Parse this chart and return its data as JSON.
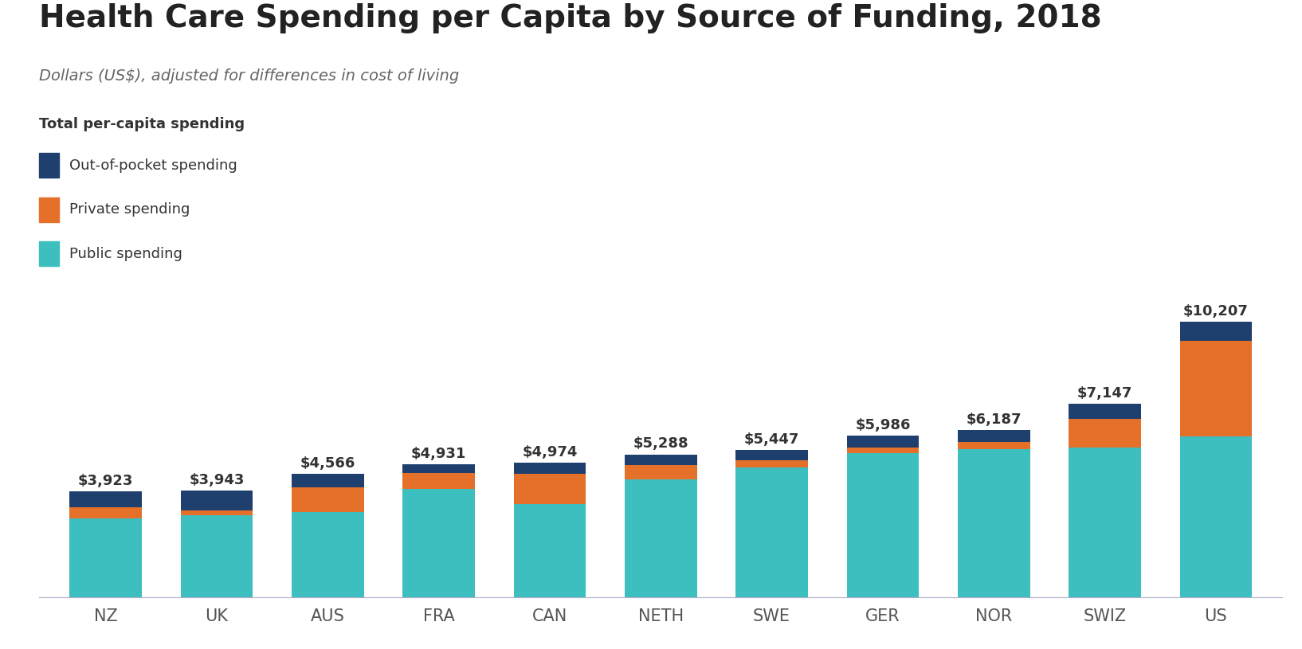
{
  "title": "Health Care Spending per Capita by Source of Funding, 2018",
  "subtitle": "Dollars (US$), adjusted for differences in cost of living",
  "legend_title": "Total per-capita spending",
  "legend_items": [
    "Out-of-pocket spending",
    "Private spending",
    "Public spending"
  ],
  "countries": [
    "NZ",
    "UK",
    "AUS",
    "FRA",
    "CAN",
    "NETH",
    "SWE",
    "GER",
    "NOR",
    "SWIZ",
    "US"
  ],
  "totals": [
    3923,
    3943,
    4566,
    4931,
    4974,
    5288,
    5447,
    5986,
    6187,
    7147,
    10207
  ],
  "total_labels": [
    "$3,923",
    "$3,943",
    "$4,566",
    "$4,931",
    "$4,974",
    "$5,288",
    "$5,447",
    "$5,986",
    "$6,187",
    "$7,147",
    "$10,207"
  ],
  "public": [
    2908,
    3040,
    3150,
    3994,
    3443,
    4354,
    4791,
    5327,
    5492,
    5539,
    5948
  ],
  "private": [
    413,
    180,
    900,
    590,
    1136,
    530,
    289,
    200,
    260,
    1050,
    3558
  ],
  "out_of_pocket": [
    602,
    723,
    516,
    347,
    395,
    404,
    367,
    459,
    435,
    558,
    701
  ],
  "color_public": "#3dbfbf",
  "color_private": "#e5702a",
  "color_oop": "#1f3f6e",
  "background_color": "#ffffff",
  "title_fontsize": 28,
  "subtitle_fontsize": 14,
  "label_fontsize": 13,
  "tick_fontsize": 15,
  "legend_fontsize": 13,
  "bar_width": 0.65
}
